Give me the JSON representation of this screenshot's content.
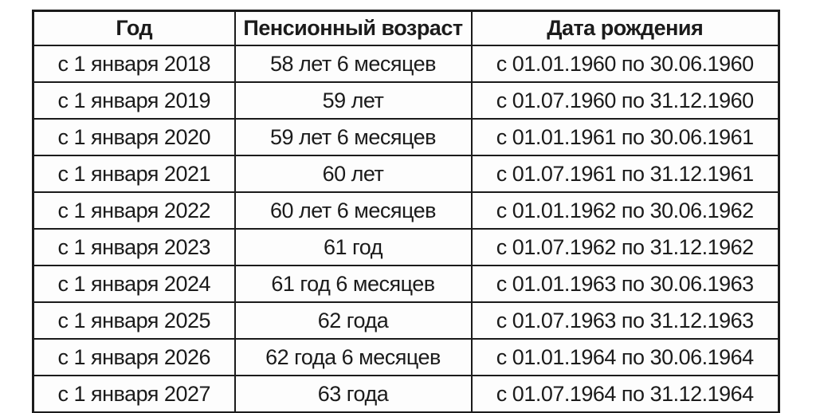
{
  "colors": {
    "background": "#ffffff",
    "cell_background": "#fdfdfd",
    "border": "#1b1b1b",
    "text": "#1b1b1b"
  },
  "chart_data": {
    "type": "table",
    "title": "",
    "columns": [
      "Год",
      "Пенсионный возраст",
      "Дата рождения"
    ],
    "rows": [
      [
        "с 1 января 2018",
        "58 лет 6 месяцев",
        "с 01.01.1960 по 30.06.1960"
      ],
      [
        "с 1 января 2019",
        "59 лет",
        "с 01.07.1960 по 31.12.1960"
      ],
      [
        "с 1 января 2020",
        "59 лет 6 месяцев",
        "с 01.01.1961 по 30.06.1961"
      ],
      [
        "с 1 января 2021",
        "60 лет",
        "с 01.07.1961 по 31.12.1961"
      ],
      [
        "с 1 января 2022",
        "60 лет 6 месяцев",
        "с 01.01.1962 по 30.06.1962"
      ],
      [
        "с 1 января 2023",
        "61 год",
        "с 01.07.1962 по 31.12.1962"
      ],
      [
        "с 1 января 2024",
        "61 год 6 месяцев",
        "с 01.01.1963 по 30.06.1963"
      ],
      [
        "с 1 января 2025",
        "62 года",
        "с 01.07.1963 по 31.12.1963"
      ],
      [
        "с 1 января 2026",
        "62 года 6 месяцев",
        "с 01.01.1964 по 30.06.1964"
      ],
      [
        "с 1 января 2027",
        "63 года",
        "с 01.07.1964 по 31.12.1964"
      ]
    ]
  }
}
